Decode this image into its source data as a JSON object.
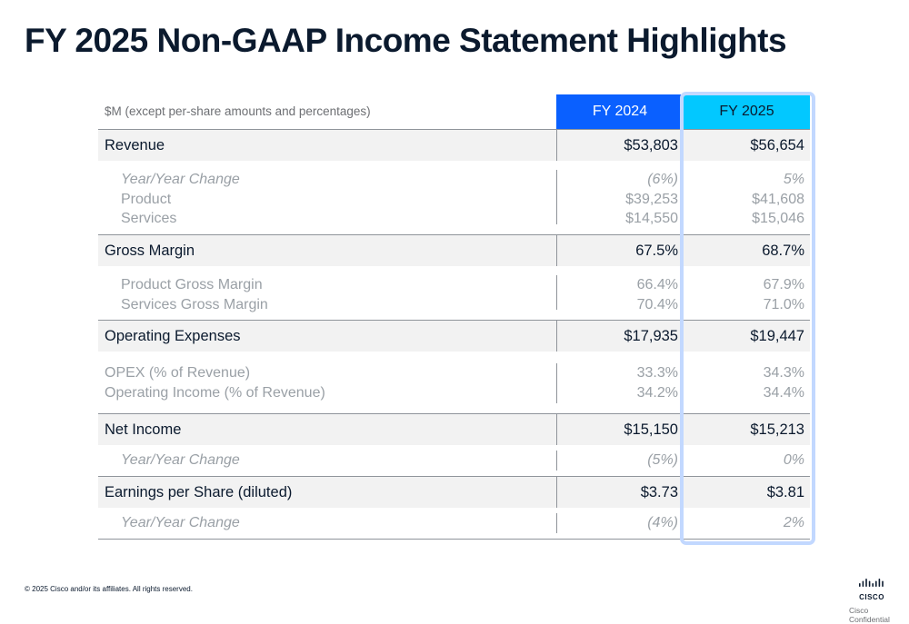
{
  "title": "FY 2025 Non-GAAP Income Statement Highlights",
  "table": {
    "header": {
      "label": "$M (except per-share amounts and percentages)",
      "col1": "FY 2024",
      "col2": "FY 2025"
    },
    "revenue": {
      "label": "Revenue",
      "v1": "$53,803",
      "v2": "$56,654",
      "sub": [
        {
          "label": "Year/Year Change",
          "v1": "(6%)",
          "v2": "5%"
        },
        {
          "label": "Product",
          "v1": "$39,253",
          "v2": "$41,608"
        },
        {
          "label": "Services",
          "v1": "$14,550",
          "v2": "$15,046"
        }
      ]
    },
    "gross_margin": {
      "label": "Gross Margin",
      "v1": "67.5%",
      "v2": "68.7%",
      "sub": [
        {
          "label": "Product Gross Margin",
          "v1": "66.4%",
          "v2": "67.9%"
        },
        {
          "label": "Services Gross Margin",
          "v1": "70.4%",
          "v2": "71.0%"
        }
      ]
    },
    "opex": {
      "label": "Operating Expenses",
      "v1": "$17,935",
      "v2": "$19,447",
      "sub": [
        {
          "label": "OPEX (% of Revenue)",
          "v1": "33.3%",
          "v2": "34.3%"
        },
        {
          "label": "Operating Income (% of Revenue)",
          "v1": "34.2%",
          "v2": "34.4%"
        }
      ]
    },
    "net_income": {
      "label": "Net Income",
      "v1": "$15,150",
      "v2": "$15,213",
      "sub": [
        {
          "label": "Year/Year Change",
          "v1": "(5%)",
          "v2": "0%"
        }
      ]
    },
    "eps": {
      "label": "Earnings per Share (diluted)",
      "v1": "$3.73",
      "v2": "$3.81",
      "sub": [
        {
          "label": "Year/Year Change",
          "v1": "(4%)",
          "v2": "2%"
        }
      ]
    }
  },
  "footer": {
    "copyright": "© 2025 Cisco and/or its affiliates. All rights reserved.",
    "logo_text": "CISCO",
    "confidential": "Cisco Confidential"
  },
  "colors": {
    "fy2024_header": "#0a60ff",
    "fy2025_header": "#02c8ff",
    "highlight_border": "#c2d8ff"
  }
}
